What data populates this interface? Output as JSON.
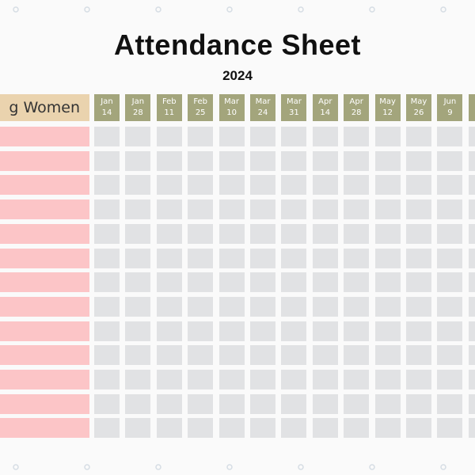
{
  "header": {
    "title": "Attendance Sheet",
    "subtitle": "2024",
    "name_column": "g Women"
  },
  "columns": [
    {
      "month": "Jan",
      "day": "14"
    },
    {
      "month": "Jan",
      "day": "28"
    },
    {
      "month": "Feb",
      "day": "11"
    },
    {
      "month": "Feb",
      "day": "25"
    },
    {
      "month": "Mar",
      "day": "10"
    },
    {
      "month": "Mar",
      "day": "24"
    },
    {
      "month": "Mar",
      "day": "31"
    },
    {
      "month": "Apr",
      "day": "14"
    },
    {
      "month": "Apr",
      "day": "28"
    },
    {
      "month": "May",
      "day": "12"
    },
    {
      "month": "May",
      "day": "26"
    },
    {
      "month": "Jun",
      "day": "9"
    }
  ]
}
